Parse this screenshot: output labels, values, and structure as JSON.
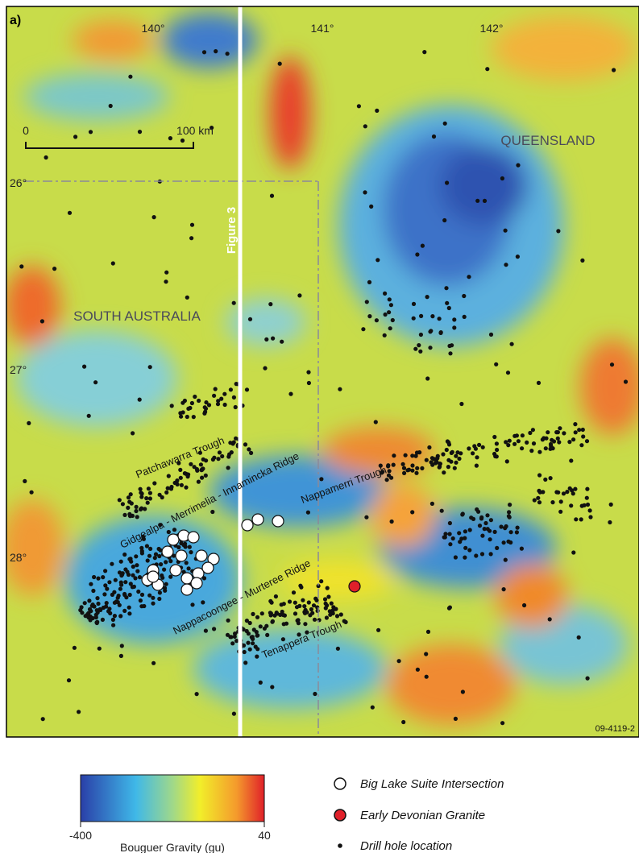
{
  "panel_label": "a)",
  "longitude_labels": [
    "140°",
    "141°",
    "142°"
  ],
  "latitude_labels": [
    "26°",
    "27°",
    "28°"
  ],
  "scale_bar": {
    "start": "0",
    "end": "100 km"
  },
  "regions": [
    "QUEENSLAND",
    "SOUTH AUSTRALIA"
  ],
  "figure_line_label": "Figure 3",
  "structures": [
    "Patchawarra Trough",
    "Gidgealpa - Merrimelia - Innamincka Ridge",
    "Nappamerri Trough",
    "Nappacoongee - Murteree Ridge",
    "Tenappera Trough"
  ],
  "figure_id": "09-4119-2",
  "colorbar": {
    "min": -400,
    "max": 40,
    "title": "Bouguer Gravity (gu)"
  },
  "legend": [
    "Big Lake Suite Intersection",
    "Early Devonian Granite",
    "Drill hole location"
  ]
}
